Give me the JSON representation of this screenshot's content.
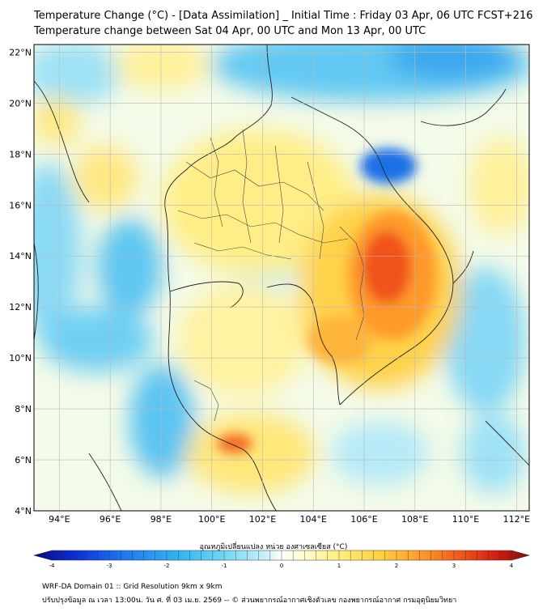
{
  "header": {
    "title_line1": "Temperature Change (°C) - [Data Assimilation] _ Initial Time : Friday 03 Apr, 06 UTC FCST+216",
    "title_line2": "Temperature change between Sat 04 Apr, 00 UTC and Mon 13 Apr, 00 UTC"
  },
  "map": {
    "lat_labels": [
      "22°N",
      "20°N",
      "18°N",
      "16°N",
      "14°N",
      "12°N",
      "10°N",
      "8°N",
      "6°N",
      "4°N"
    ],
    "lon_labels": [
      "94°E",
      "96°E",
      "98°E",
      "100°E",
      "102°E",
      "104°E",
      "106°E",
      "108°E",
      "110°E",
      "112°E"
    ],
    "lat_range": [
      4,
      22.3
    ],
    "lon_range": [
      93,
      112.5
    ],
    "grid": true
  },
  "colorbar": {
    "label": "อุณหภูมิเปลี่ยนแปลง หน่วย องศาเซลเซียส (°C)",
    "ticks": [
      "-4",
      "-3",
      "-2",
      "-1",
      "0",
      "1",
      "2",
      "3",
      "4"
    ],
    "range": [
      -4,
      4
    ],
    "colors": [
      "#08087a",
      "#0a2dd8",
      "#1e78ee",
      "#36b8f2",
      "#7fdcf6",
      "#cdf0fa",
      "#ffffff",
      "#fffcc8",
      "#ffee78",
      "#ffd040",
      "#ff9a2a",
      "#f05a1a",
      "#d42010",
      "#8a0a0a"
    ]
  },
  "footer": {
    "line1": "WRF-DA Domain 01 :: Grid Resolution 9km x 9km",
    "line2": "ปรับปรุงข้อมูล ณ เวลา 13:00น. วัน ศ. ที่ 03 เม.ย. 2569 -- © ส่วนพยากรณ์อากาศเชิงตัวเลข กองพยากรณ์อากาศ กรมอุตุนิยมวิทยา"
  }
}
